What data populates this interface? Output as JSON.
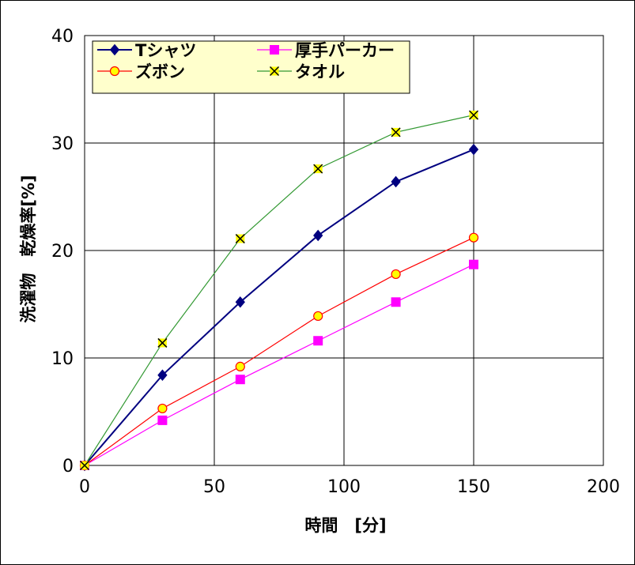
{
  "chart_data": {
    "type": "line",
    "title": "",
    "xlabel": "時間　[分]",
    "ylabel": "洗濯物　乾燥率[%]",
    "xlim": [
      0,
      200
    ],
    "ylim": [
      0,
      40
    ],
    "xticks": [
      0,
      50,
      100,
      150,
      200
    ],
    "yticks": [
      0,
      10,
      20,
      30,
      40
    ],
    "grid": true,
    "legend_position": "top-left",
    "x": [
      0,
      30,
      60,
      90,
      120,
      150
    ],
    "series": [
      {
        "name": "Tシャツ",
        "color": "#000080",
        "marker": "diamond",
        "values": [
          0,
          8.4,
          15.2,
          21.4,
          26.4,
          29.4
        ]
      },
      {
        "name": "厚手パーカー",
        "color": "#FF00FF",
        "marker": "square",
        "values": [
          0,
          4.2,
          8.0,
          11.6,
          15.2,
          18.7
        ]
      },
      {
        "name": "ズボン",
        "color": "#FF0000",
        "marker_fill": "#FFFF00",
        "marker": "circle",
        "values": [
          0,
          5.3,
          9.2,
          13.9,
          17.8,
          21.2
        ]
      },
      {
        "name": "タオル",
        "color": "#339933",
        "marker_fill": "#FFFF00",
        "marker": "x",
        "values": [
          0,
          11.4,
          21.1,
          27.6,
          31.0,
          32.6
        ]
      }
    ]
  }
}
